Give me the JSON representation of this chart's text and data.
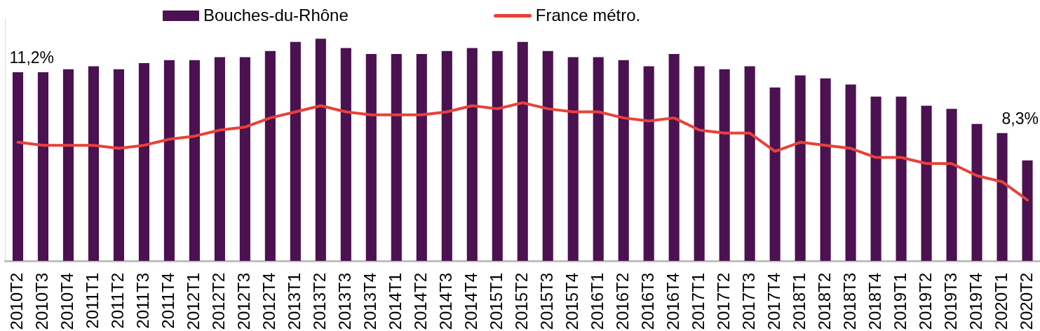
{
  "chart_data": {
    "type": "bar",
    "categories": [
      "2010T2",
      "2010T3",
      "2010T4",
      "2011T1",
      "2011T2",
      "2011T3",
      "2011T4",
      "2012T1",
      "2012T2",
      "2012T3",
      "2012T4",
      "2013T1",
      "2013T2",
      "2013T3",
      "2013T4",
      "2014T1",
      "2014T2",
      "2014T3",
      "2014T4",
      "2015T1",
      "2015T2",
      "2015T3",
      "2015T4",
      "2016T1",
      "2016T2",
      "2016T3",
      "2016T4",
      "2017T1",
      "2017T2",
      "2017T3",
      "2017T4",
      "2018T1",
      "2018T2",
      "2018T3",
      "2018T4",
      "2019T1",
      "2019T2",
      "2019T3",
      "2019T4",
      "2020T1",
      "2020T2"
    ],
    "series": [
      {
        "name": "Bouches-du-Rhône",
        "color": "#4b1150",
        "values": [
          11.2,
          11.2,
          11.3,
          11.4,
          11.3,
          11.5,
          11.6,
          11.6,
          11.7,
          11.7,
          11.9,
          12.2,
          12.3,
          12.0,
          11.8,
          11.8,
          11.8,
          11.9,
          12.0,
          11.9,
          12.2,
          11.9,
          11.7,
          11.7,
          11.6,
          11.4,
          11.8,
          11.4,
          11.3,
          11.4,
          10.7,
          11.1,
          11.0,
          10.8,
          10.4,
          10.4,
          10.1,
          10.0,
          9.5,
          9.2,
          8.3
        ],
        "value_labels": [
          "11,2%",
          null,
          null,
          null,
          null,
          null,
          null,
          null,
          null,
          null,
          null,
          null,
          null,
          null,
          null,
          null,
          null,
          null,
          null,
          null,
          null,
          null,
          null,
          null,
          null,
          null,
          null,
          null,
          null,
          null,
          null,
          null,
          null,
          null,
          null,
          null,
          null,
          null,
          null,
          null,
          "8,3%"
        ]
      },
      {
        "name": "France métro.",
        "type": "line",
        "color": "#e8413a",
        "values": [
          8.9,
          8.8,
          8.8,
          8.8,
          8.7,
          8.8,
          9.0,
          9.1,
          9.3,
          9.4,
          9.7,
          9.9,
          10.1,
          9.9,
          9.8,
          9.8,
          9.8,
          9.9,
          10.1,
          10.0,
          10.2,
          10.0,
          9.9,
          9.9,
          9.7,
          9.6,
          9.7,
          9.3,
          9.2,
          9.2,
          8.6,
          8.9,
          8.8,
          8.7,
          8.4,
          8.4,
          8.2,
          8.2,
          7.8,
          7.6,
          7.0
        ]
      }
    ],
    "ylim": [
      5,
      13
    ],
    "tick_labels": "x",
    "legend": "top",
    "marker": "none"
  }
}
